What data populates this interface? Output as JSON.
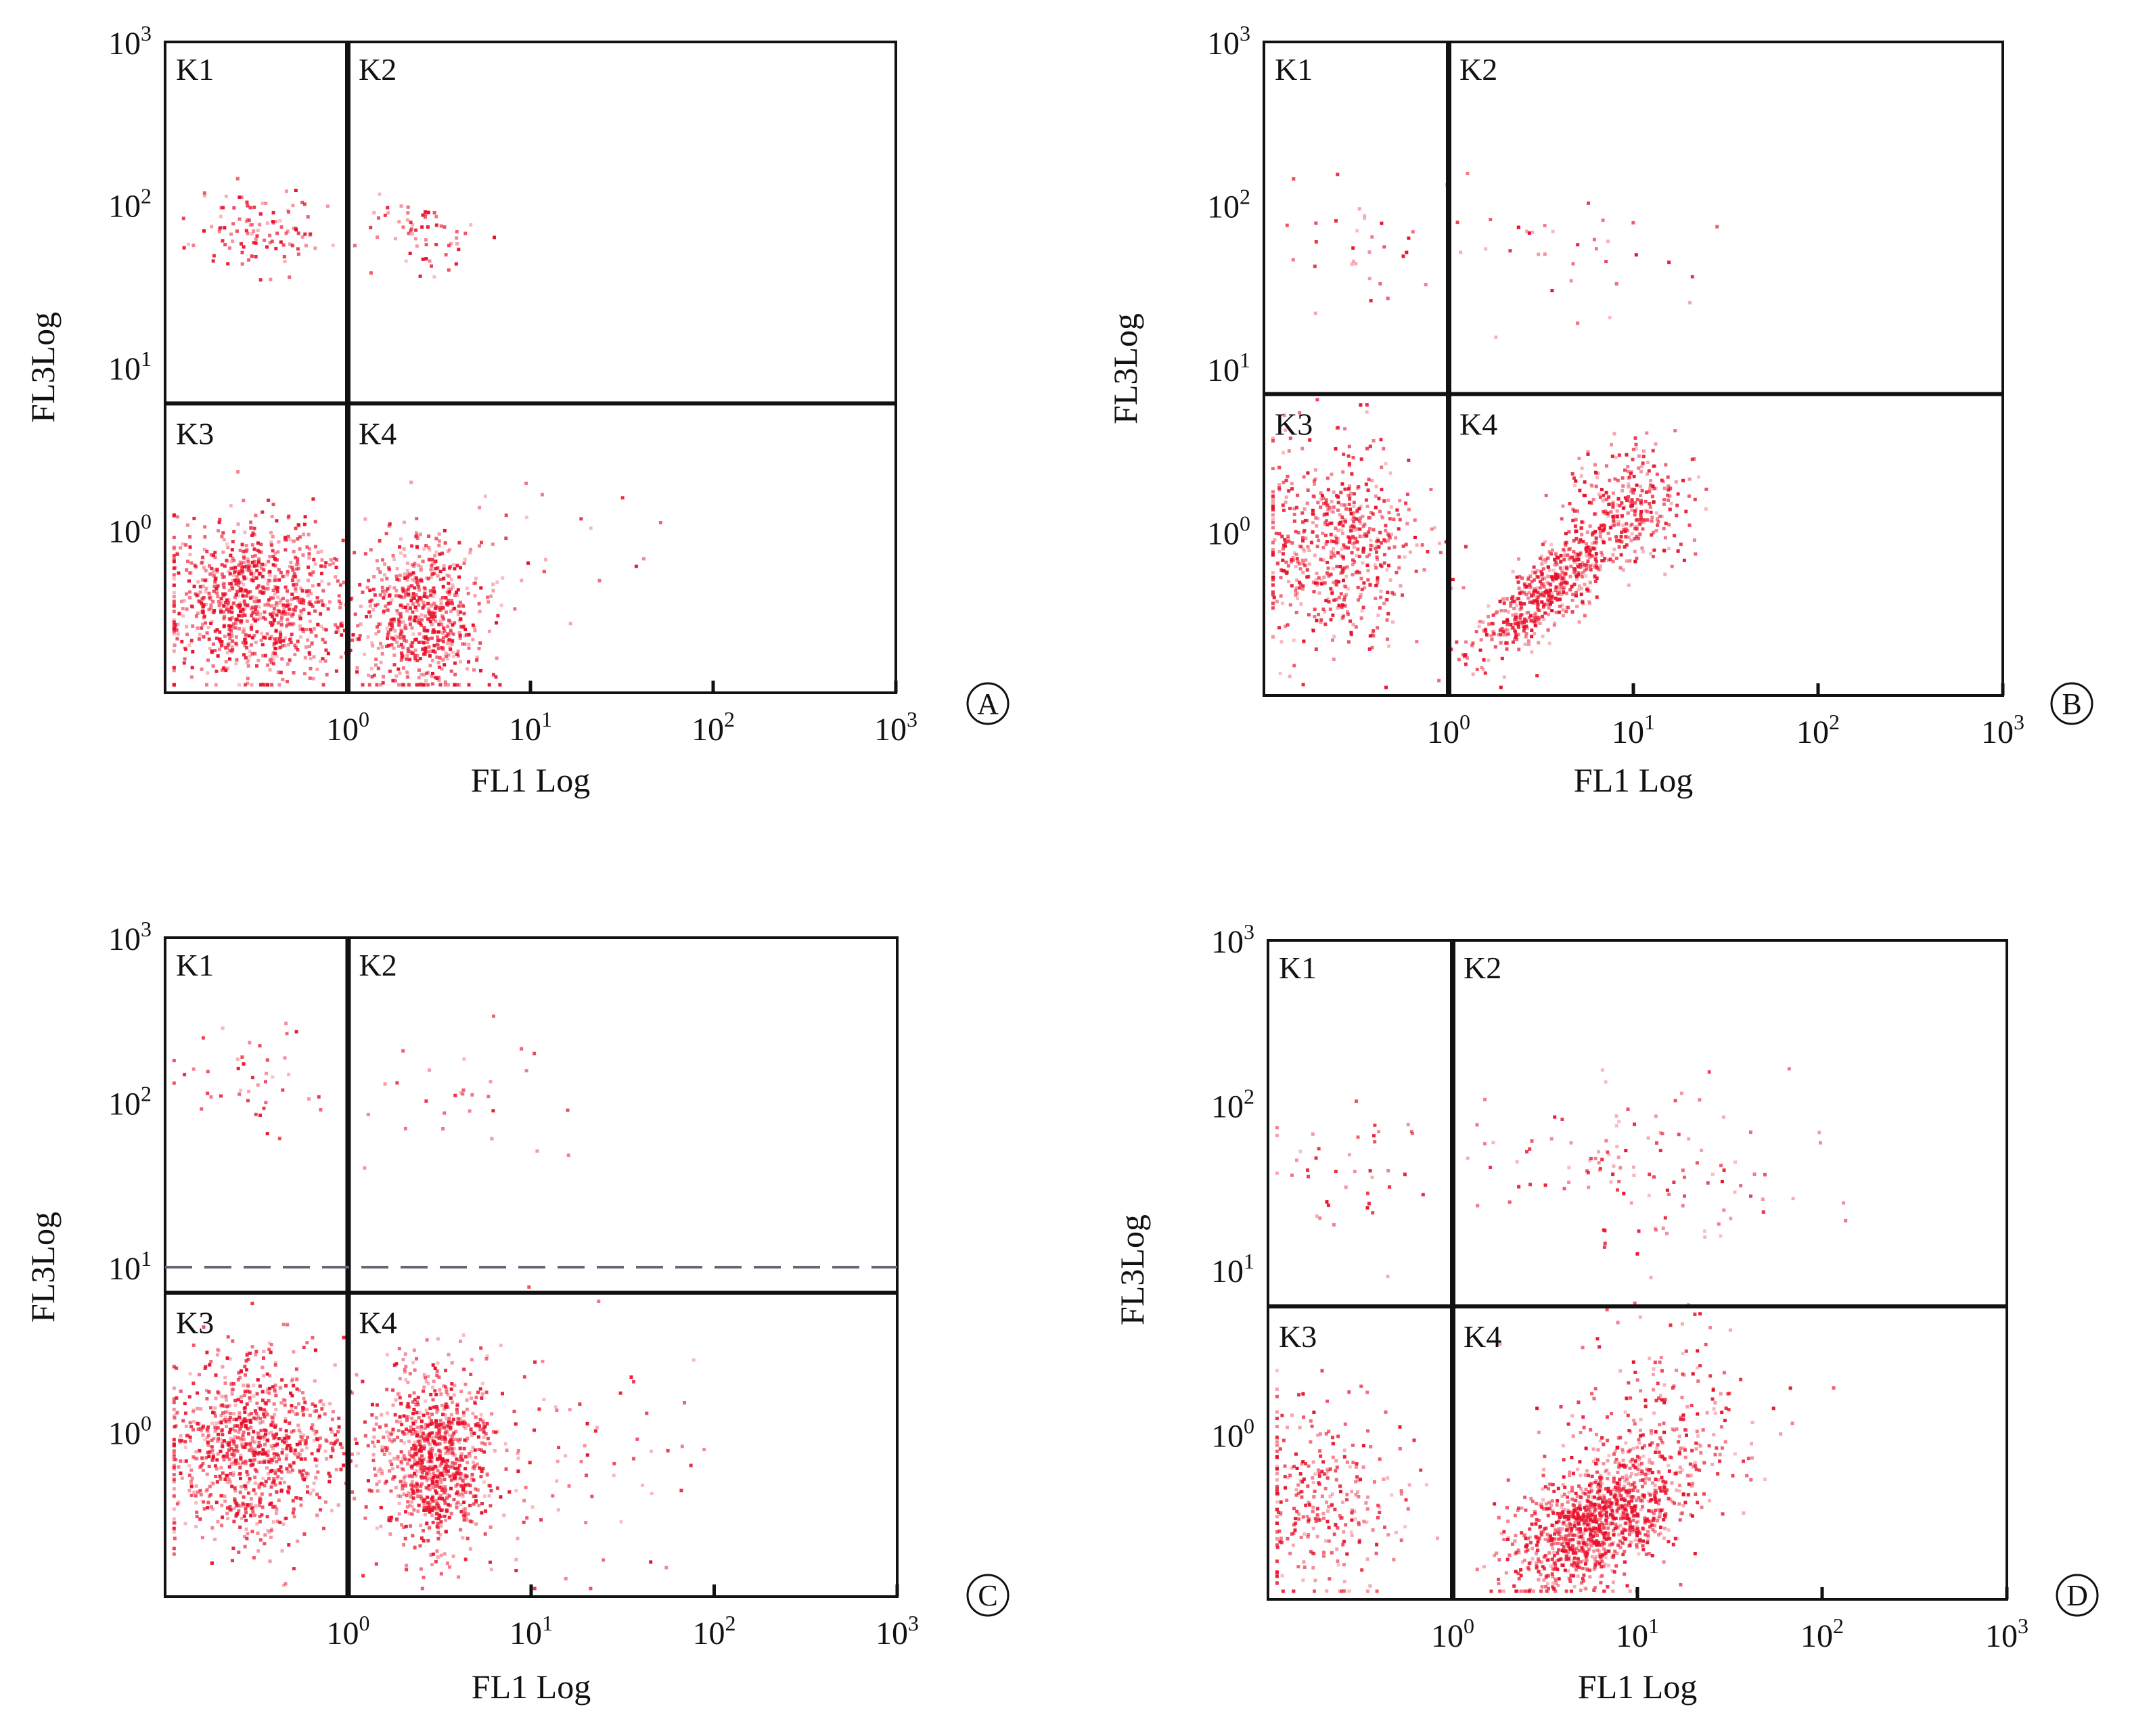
{
  "chart_data": [
    {
      "type": "scatter",
      "panel": "A",
      "xlabel": "FL1 Log",
      "ylabel": "FL3Log",
      "x_scale": "log",
      "y_scale": "log",
      "xlim": [
        0.1,
        1000
      ],
      "ylim": [
        0.1,
        1000
      ],
      "x_ticks": [
        "10^0",
        "10^1",
        "10^2",
        "10^3"
      ],
      "y_ticks": [
        "10^0",
        "10^1",
        "10^2",
        "10^3"
      ],
      "quadrant_labels": [
        "K1",
        "K2",
        "K3",
        "K4"
      ],
      "gate": {
        "x": 1,
        "y": 6
      },
      "color": "#e8102a",
      "clusters": [
        {
          "quadrant": "K3",
          "cx": 0.3,
          "cy": 0.35,
          "spread_x": 0.24,
          "spread_y": 0.25,
          "n": 900
        },
        {
          "quadrant": "K4",
          "cx": 2.5,
          "cy": 0.3,
          "spread_x": 0.17,
          "spread_y": 0.25,
          "n": 650
        },
        {
          "quadrant": "K1",
          "cx": 0.35,
          "cy": 65,
          "spread_x": 0.22,
          "spread_y": 0.12,
          "n": 110
        },
        {
          "quadrant": "K2",
          "cx": 2.6,
          "cy": 65,
          "spread_x": 0.15,
          "spread_y": 0.12,
          "n": 60
        },
        {
          "quadrant": "K4",
          "cx": 12,
          "cy": 0.6,
          "spread_x": 0.4,
          "spread_y": 0.45,
          "n": 25
        }
      ]
    },
    {
      "type": "scatter",
      "panel": "B",
      "xlabel": "FL1 Log",
      "ylabel": "FL3Log",
      "x_scale": "log",
      "y_scale": "log",
      "xlim": [
        0.1,
        1000
      ],
      "ylim": [
        0.1,
        1000
      ],
      "x_ticks": [
        "10^0",
        "10^1",
        "10^2",
        "10^3"
      ],
      "y_ticks": [
        "10^0",
        "10^1",
        "10^2",
        "10^3"
      ],
      "quadrant_labels": [
        "K1",
        "K2",
        "K3",
        "K4"
      ],
      "gate": {
        "x": 1,
        "y": 7
      },
      "color": "#e8102a",
      "clusters": [
        {
          "quadrant": "K3",
          "cx": 0.25,
          "cy": 0.8,
          "spread_x": 0.22,
          "spread_y": 0.3,
          "n": 600
        },
        {
          "quadrant": "K4",
          "cx": 3.5,
          "cy": 0.45,
          "spread_x": 0.2,
          "spread_y": 0.22,
          "n": 550,
          "corr": 0.8
        },
        {
          "quadrant": "K4",
          "cx": 10,
          "cy": 1.5,
          "spread_x": 0.16,
          "spread_y": 0.18,
          "n": 280
        },
        {
          "quadrant": "K1",
          "cx": 0.3,
          "cy": 60,
          "spread_x": 0.22,
          "spread_y": 0.2,
          "n": 30
        },
        {
          "quadrant": "K2",
          "cx": 6,
          "cy": 50,
          "spread_x": 0.35,
          "spread_y": 0.25,
          "n": 35
        }
      ]
    },
    {
      "type": "scatter",
      "panel": "C",
      "xlabel": "FL1 Log",
      "ylabel": "FL3Log",
      "x_scale": "log",
      "y_scale": "log",
      "xlim": [
        0.1,
        1000
      ],
      "ylim": [
        0.1,
        1000
      ],
      "x_ticks": [
        "10^0",
        "10^1",
        "10^2",
        "10^3"
      ],
      "y_ticks": [
        "10^0",
        "10^1",
        "10^2",
        "10^3"
      ],
      "quadrant_labels": [
        "K1",
        "K2",
        "K3",
        "K4"
      ],
      "gate": {
        "x": 1,
        "y": 7
      },
      "gate_dashed_y": 10,
      "color": "#e8102a",
      "clusters": [
        {
          "quadrant": "K3",
          "cx": 0.3,
          "cy": 0.8,
          "spread_x": 0.24,
          "spread_y": 0.28,
          "n": 900
        },
        {
          "quadrant": "K4",
          "cx": 3,
          "cy": 0.7,
          "spread_x": 0.15,
          "spread_y": 0.27,
          "n": 900
        },
        {
          "quadrant": "K4",
          "cx": 15,
          "cy": 0.6,
          "spread_x": 0.35,
          "spread_y": 0.4,
          "n": 80
        },
        {
          "quadrant": "K1",
          "cx": 0.3,
          "cy": 150,
          "spread_x": 0.2,
          "spread_y": 0.22,
          "n": 40
        },
        {
          "quadrant": "K2",
          "cx": 5,
          "cy": 100,
          "spread_x": 0.4,
          "spread_y": 0.25,
          "n": 30
        }
      ]
    },
    {
      "type": "scatter",
      "panel": "D",
      "xlabel": "FL1 Log",
      "ylabel": "FL3Log",
      "x_scale": "log",
      "y_scale": "log",
      "xlim": [
        0.1,
        1000
      ],
      "ylim": [
        0.1,
        1000
      ],
      "x_ticks": [
        "10^0",
        "10^1",
        "10^2",
        "10^3"
      ],
      "y_ticks": [
        "10^0",
        "10^1",
        "10^2",
        "10^3"
      ],
      "quadrant_labels": [
        "K1",
        "K2",
        "K3",
        "K4"
      ],
      "gate": {
        "x": 1,
        "y": 6
      },
      "color": "#e8102a",
      "clusters": [
        {
          "quadrant": "K4",
          "cx": 6,
          "cy": 0.3,
          "spread_x": 0.23,
          "spread_y": 0.22,
          "n": 1100,
          "corr": 0.5
        },
        {
          "quadrant": "K4",
          "cx": 15,
          "cy": 1.2,
          "spread_x": 0.3,
          "spread_y": 0.3,
          "n": 200
        },
        {
          "quadrant": "K3",
          "cx": 0.2,
          "cy": 0.4,
          "spread_x": 0.22,
          "spread_y": 0.3,
          "n": 300
        },
        {
          "quadrant": "K1",
          "cx": 0.3,
          "cy": 40,
          "spread_x": 0.25,
          "spread_y": 0.22,
          "n": 40
        },
        {
          "quadrant": "K2",
          "cx": 10,
          "cy": 40,
          "spread_x": 0.5,
          "spread_y": 0.25,
          "n": 120
        }
      ]
    }
  ]
}
